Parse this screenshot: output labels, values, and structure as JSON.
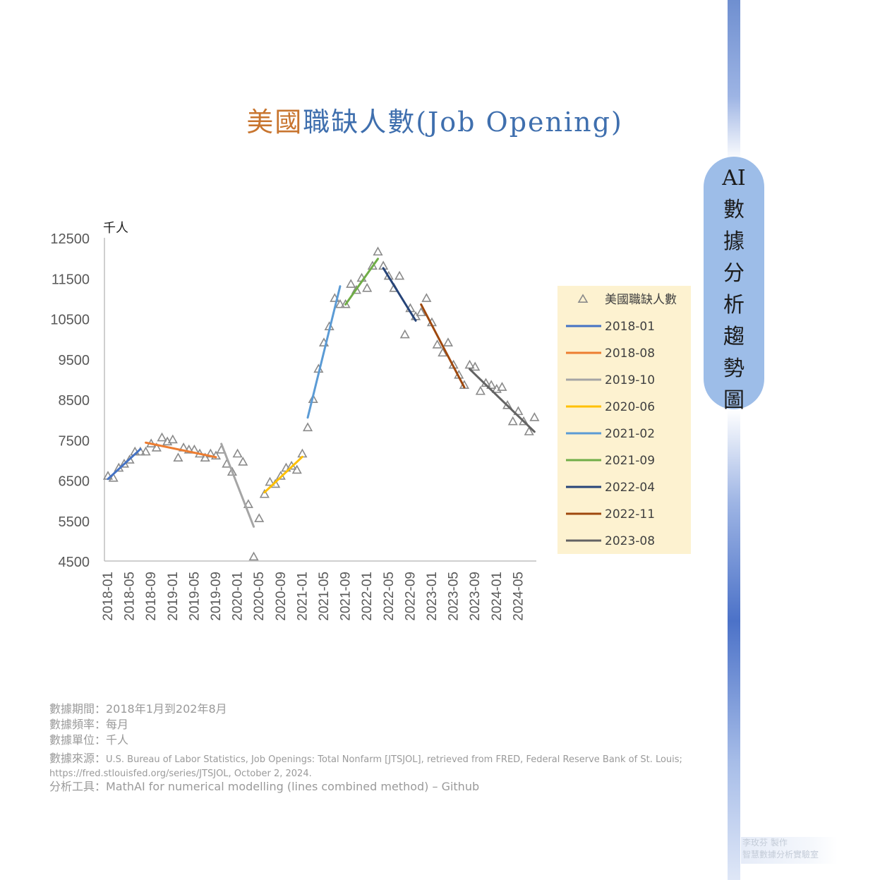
{
  "title": {
    "part1": "美國",
    "part2": "職缺人數(Job Opening)"
  },
  "side_label": [
    "AI",
    "數",
    "據",
    "分",
    "析",
    "趨",
    "勢",
    "圖"
  ],
  "credit": {
    "line1": "李玫芬 製作",
    "line2": "智慧數據分析實驗室"
  },
  "notes": {
    "period": "數據期間：2018年1月到202年8月",
    "frequency": "數據頻率：每月",
    "unit": "數據單位：千人",
    "source_label": "數據來源：",
    "source": "U.S. Bureau of Labor Statistics, Job Openings: Total Nonfarm [JTSJOL], retrieved from FRED, Federal Reserve Bank of St. Louis; https://fred.stlouisfed.org/series/JTSJOL, October 2, 2024.",
    "tool": "分析工具：MathAI for numerical modelling (lines combined method) – Github"
  },
  "chart_data": {
    "type": "scatter",
    "ylabel": "千人",
    "ylim": [
      4500,
      12500
    ],
    "yticks": [
      4500,
      5500,
      6500,
      7500,
      8500,
      9500,
      10500,
      11500,
      12500
    ],
    "xticks": [
      "2018-01",
      "2018-05",
      "2018-09",
      "2019-01",
      "2019-05",
      "2019-09",
      "2020-01",
      "2020-05",
      "2020-09",
      "2021-01",
      "2021-05",
      "2021-09",
      "2022-01",
      "2022-05",
      "2022-09",
      "2023-01",
      "2023-05",
      "2023-09",
      "2024-01",
      "2024-05"
    ],
    "legend_position": "right",
    "grid": false,
    "marker_color": "#8a8a8a",
    "series": [
      {
        "name": "美國職缺人數",
        "type": "scatter",
        "x": [
          "2018-01",
          "2018-02",
          "2018-03",
          "2018-04",
          "2018-05",
          "2018-06",
          "2018-07",
          "2018-08",
          "2018-09",
          "2018-10",
          "2018-11",
          "2018-12",
          "2019-01",
          "2019-02",
          "2019-03",
          "2019-04",
          "2019-05",
          "2019-06",
          "2019-07",
          "2019-08",
          "2019-09",
          "2019-10",
          "2019-11",
          "2019-12",
          "2020-01",
          "2020-02",
          "2020-03",
          "2020-04",
          "2020-05",
          "2020-06",
          "2020-07",
          "2020-08",
          "2020-09",
          "2020-10",
          "2020-11",
          "2020-12",
          "2021-01",
          "2021-02",
          "2021-03",
          "2021-04",
          "2021-05",
          "2021-06",
          "2021-07",
          "2021-08",
          "2021-09",
          "2021-10",
          "2021-11",
          "2021-12",
          "2022-01",
          "2022-02",
          "2022-03",
          "2022-04",
          "2022-05",
          "2022-06",
          "2022-07",
          "2022-08",
          "2022-09",
          "2022-10",
          "2022-11",
          "2022-12",
          "2023-01",
          "2023-02",
          "2023-03",
          "2023-04",
          "2023-05",
          "2023-06",
          "2023-07",
          "2023-08",
          "2023-09",
          "2023-10",
          "2023-11",
          "2023-12",
          "2024-01",
          "2024-02",
          "2024-03",
          "2024-04",
          "2024-05",
          "2024-06",
          "2024-07",
          "2024-08"
        ],
        "y": [
          6600,
          6550,
          6800,
          6900,
          7000,
          7200,
          7200,
          7200,
          7400,
          7300,
          7550,
          7450,
          7500,
          7050,
          7300,
          7250,
          7250,
          7150,
          7050,
          7150,
          7100,
          7250,
          6900,
          6700,
          7150,
          6950,
          5900,
          4600,
          5550,
          6150,
          6450,
          6400,
          6600,
          6800,
          6850,
          6750,
          7150,
          7800,
          8500,
          9250,
          9900,
          10300,
          11000,
          10850,
          10850,
          11350,
          11200,
          11500,
          11250,
          11800,
          12150,
          11800,
          11550,
          11250,
          11550,
          10100,
          10750,
          10550,
          10650,
          11000,
          10400,
          9850,
          9650,
          9900,
          9350,
          9100,
          8850,
          9350,
          9300,
          8700,
          8900,
          8850,
          8750,
          8800,
          8350,
          7950,
          8200,
          7950,
          7700,
          8050
        ]
      },
      {
        "name": "2018-01",
        "type": "line",
        "color": "#4472c4",
        "x": [
          "2018-01",
          "2018-07"
        ],
        "y": [
          6530,
          7270
        ]
      },
      {
        "name": "2018-08",
        "type": "line",
        "color": "#ed7d31",
        "x": [
          "2018-08",
          "2019-09"
        ],
        "y": [
          7430,
          7070
        ]
      },
      {
        "name": "2019-10",
        "type": "line",
        "color": "#a5a5a5",
        "x": [
          "2019-10",
          "2020-04"
        ],
        "y": [
          7400,
          5350
        ]
      },
      {
        "name": "2020-06",
        "type": "line",
        "color": "#ffc000",
        "x": [
          "2020-06",
          "2021-01"
        ],
        "y": [
          6200,
          7080
        ]
      },
      {
        "name": "2021-02",
        "type": "line",
        "color": "#5b9bd5",
        "x": [
          "2021-02",
          "2021-08"
        ],
        "y": [
          8050,
          11300
        ]
      },
      {
        "name": "2021-09",
        "type": "line",
        "color": "#70ad47",
        "x": [
          "2021-09",
          "2022-03"
        ],
        "y": [
          10850,
          11980
        ]
      },
      {
        "name": "2022-04",
        "type": "line",
        "color": "#264478",
        "x": [
          "2022-04",
          "2022-10"
        ],
        "y": [
          11750,
          10450
        ]
      },
      {
        "name": "2022-11",
        "type": "line",
        "color": "#9e480e",
        "x": [
          "2022-11",
          "2023-07"
        ],
        "y": [
          10850,
          8800
        ]
      },
      {
        "name": "2023-08",
        "type": "line",
        "color": "#636363",
        "x": [
          "2023-08",
          "2024-08"
        ],
        "y": [
          9250,
          7700
        ]
      }
    ]
  }
}
